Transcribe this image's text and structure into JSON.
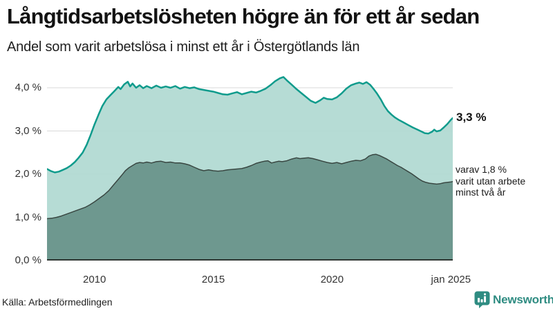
{
  "colors": {
    "background": "#ffffff",
    "gridline": "#d9d9d9",
    "baseline": "#2f3733",
    "accent_teal": "#0f9b8c",
    "dark_area": "#6f978f",
    "brand_teal": "#2f8c82",
    "text": "#121212"
  },
  "annotations": {
    "total_end_label": "3,3 %",
    "lower_end_lines": [
      "varav 1,8 %",
      "varit utan arbete",
      "minst två år"
    ]
  },
  "footer": {
    "source": "Källa: Arbetsförmedlingen",
    "brand": {
      "name": "Newsworthy",
      "icon": "bar-chart-bubble-icon",
      "color": "#2f8c82"
    }
  },
  "chart_data": {
    "type": "area",
    "title": "Långtidsarbetslösheten högre än för ett år sedan",
    "subtitle": "Andel som varit arbetslösa i minst ett år i Östergötlands län",
    "source": "Källa: Arbetsförmedlingen",
    "grid": true,
    "legend_position": "none",
    "x_axis": {
      "range": [
        2008.0,
        2025.08
      ],
      "ticks": [
        {
          "value": 2010,
          "label": "2010"
        },
        {
          "value": 2015,
          "label": "2015"
        },
        {
          "value": 2020,
          "label": "2020"
        },
        {
          "value": 2025,
          "label": "jan 2025"
        }
      ]
    },
    "y_axis": {
      "range": [
        0,
        4.384
      ],
      "unit": "%",
      "ticks": [
        {
          "value": 0,
          "label": "0,0 %"
        },
        {
          "value": 1,
          "label": "1,0 %"
        },
        {
          "value": 2,
          "label": "2,0 %"
        },
        {
          "value": 3,
          "label": "3,0 %"
        },
        {
          "value": 4,
          "label": "4,0 %"
        }
      ]
    },
    "series": [
      {
        "name": "Arbetslösa minst ett år",
        "end_value": 3.3,
        "end_label": "3,3 %",
        "line_color": "#0f9b8c",
        "line_width": 2.5,
        "fill_color": "rgba(176,217,210,0.93)",
        "points": [
          [
            2008.0,
            2.12
          ],
          [
            2008.17,
            2.07
          ],
          [
            2008.33,
            2.04
          ],
          [
            2008.5,
            2.06
          ],
          [
            2008.67,
            2.1
          ],
          [
            2008.83,
            2.14
          ],
          [
            2009.0,
            2.2
          ],
          [
            2009.17,
            2.28
          ],
          [
            2009.33,
            2.38
          ],
          [
            2009.5,
            2.5
          ],
          [
            2009.67,
            2.68
          ],
          [
            2009.83,
            2.9
          ],
          [
            2010.0,
            3.15
          ],
          [
            2010.17,
            3.38
          ],
          [
            2010.33,
            3.58
          ],
          [
            2010.5,
            3.73
          ],
          [
            2010.67,
            3.83
          ],
          [
            2010.83,
            3.92
          ],
          [
            2011.0,
            4.02
          ],
          [
            2011.1,
            3.97
          ],
          [
            2011.25,
            4.08
          ],
          [
            2011.4,
            4.14
          ],
          [
            2011.5,
            4.03
          ],
          [
            2011.6,
            4.1
          ],
          [
            2011.75,
            4.0
          ],
          [
            2011.9,
            4.06
          ],
          [
            2012.05,
            3.99
          ],
          [
            2012.2,
            4.04
          ],
          [
            2012.4,
            3.99
          ],
          [
            2012.6,
            4.05
          ],
          [
            2012.8,
            4.0
          ],
          [
            2013.0,
            4.03
          ],
          [
            2013.2,
            4.0
          ],
          [
            2013.4,
            4.04
          ],
          [
            2013.6,
            3.98
          ],
          [
            2013.8,
            4.02
          ],
          [
            2014.0,
            3.99
          ],
          [
            2014.2,
            4.01
          ],
          [
            2014.4,
            3.97
          ],
          [
            2014.6,
            3.95
          ],
          [
            2014.8,
            3.93
          ],
          [
            2015.0,
            3.91
          ],
          [
            2015.2,
            3.88
          ],
          [
            2015.4,
            3.85
          ],
          [
            2015.6,
            3.84
          ],
          [
            2015.8,
            3.87
          ],
          [
            2016.0,
            3.9
          ],
          [
            2016.2,
            3.85
          ],
          [
            2016.4,
            3.88
          ],
          [
            2016.6,
            3.91
          ],
          [
            2016.8,
            3.89
          ],
          [
            2017.0,
            3.93
          ],
          [
            2017.2,
            3.98
          ],
          [
            2017.4,
            4.06
          ],
          [
            2017.6,
            4.15
          ],
          [
            2017.8,
            4.22
          ],
          [
            2017.95,
            4.25
          ],
          [
            2018.1,
            4.17
          ],
          [
            2018.3,
            4.07
          ],
          [
            2018.5,
            3.97
          ],
          [
            2018.7,
            3.88
          ],
          [
            2018.9,
            3.79
          ],
          [
            2019.1,
            3.7
          ],
          [
            2019.3,
            3.65
          ],
          [
            2019.5,
            3.71
          ],
          [
            2019.65,
            3.77
          ],
          [
            2019.8,
            3.74
          ],
          [
            2020.0,
            3.73
          ],
          [
            2020.2,
            3.78
          ],
          [
            2020.4,
            3.87
          ],
          [
            2020.6,
            3.98
          ],
          [
            2020.8,
            4.06
          ],
          [
            2021.0,
            4.1
          ],
          [
            2021.15,
            4.12
          ],
          [
            2021.3,
            4.09
          ],
          [
            2021.45,
            4.13
          ],
          [
            2021.6,
            4.07
          ],
          [
            2021.75,
            3.97
          ],
          [
            2021.9,
            3.86
          ],
          [
            2022.05,
            3.73
          ],
          [
            2022.2,
            3.58
          ],
          [
            2022.35,
            3.46
          ],
          [
            2022.5,
            3.38
          ],
          [
            2022.65,
            3.31
          ],
          [
            2022.8,
            3.26
          ],
          [
            2023.0,
            3.2
          ],
          [
            2023.2,
            3.14
          ],
          [
            2023.4,
            3.08
          ],
          [
            2023.6,
            3.03
          ],
          [
            2023.75,
            2.99
          ],
          [
            2023.9,
            2.95
          ],
          [
            2024.05,
            2.94
          ],
          [
            2024.2,
            2.98
          ],
          [
            2024.3,
            3.03
          ],
          [
            2024.4,
            2.99
          ],
          [
            2024.55,
            3.01
          ],
          [
            2024.7,
            3.08
          ],
          [
            2024.85,
            3.16
          ],
          [
            2025.0,
            3.26
          ],
          [
            2025.08,
            3.3
          ]
        ]
      },
      {
        "name": "Arbetslösa minst två år",
        "end_value": 1.8,
        "end_label": "varav 1,8 % varit utan arbete minst två år",
        "line_color": "#394742",
        "line_width": 1.5,
        "fill_color": "rgba(104,146,138,0.93)",
        "points": [
          [
            2008.0,
            0.97
          ],
          [
            2008.2,
            0.98
          ],
          [
            2008.4,
            1.0
          ],
          [
            2008.6,
            1.03
          ],
          [
            2008.8,
            1.07
          ],
          [
            2009.0,
            1.11
          ],
          [
            2009.2,
            1.15
          ],
          [
            2009.4,
            1.19
          ],
          [
            2009.6,
            1.23
          ],
          [
            2009.8,
            1.29
          ],
          [
            2010.0,
            1.36
          ],
          [
            2010.2,
            1.44
          ],
          [
            2010.4,
            1.52
          ],
          [
            2010.6,
            1.62
          ],
          [
            2010.8,
            1.75
          ],
          [
            2011.0,
            1.88
          ],
          [
            2011.15,
            1.98
          ],
          [
            2011.3,
            2.08
          ],
          [
            2011.45,
            2.15
          ],
          [
            2011.6,
            2.2
          ],
          [
            2011.75,
            2.25
          ],
          [
            2011.9,
            2.27
          ],
          [
            2012.05,
            2.26
          ],
          [
            2012.2,
            2.28
          ],
          [
            2012.4,
            2.26
          ],
          [
            2012.6,
            2.29
          ],
          [
            2012.8,
            2.3
          ],
          [
            2013.0,
            2.27
          ],
          [
            2013.2,
            2.28
          ],
          [
            2013.4,
            2.26
          ],
          [
            2013.6,
            2.26
          ],
          [
            2013.8,
            2.24
          ],
          [
            2014.0,
            2.21
          ],
          [
            2014.2,
            2.16
          ],
          [
            2014.4,
            2.11
          ],
          [
            2014.6,
            2.08
          ],
          [
            2014.8,
            2.1
          ],
          [
            2015.0,
            2.08
          ],
          [
            2015.2,
            2.07
          ],
          [
            2015.4,
            2.08
          ],
          [
            2015.6,
            2.1
          ],
          [
            2015.8,
            2.11
          ],
          [
            2016.0,
            2.12
          ],
          [
            2016.2,
            2.13
          ],
          [
            2016.4,
            2.16
          ],
          [
            2016.6,
            2.2
          ],
          [
            2016.8,
            2.25
          ],
          [
            2017.0,
            2.28
          ],
          [
            2017.15,
            2.3
          ],
          [
            2017.3,
            2.31
          ],
          [
            2017.45,
            2.26
          ],
          [
            2017.6,
            2.28
          ],
          [
            2017.75,
            2.3
          ],
          [
            2017.9,
            2.29
          ],
          [
            2018.1,
            2.31
          ],
          [
            2018.3,
            2.35
          ],
          [
            2018.5,
            2.38
          ],
          [
            2018.65,
            2.36
          ],
          [
            2018.8,
            2.37
          ],
          [
            2019.0,
            2.38
          ],
          [
            2019.2,
            2.36
          ],
          [
            2019.4,
            2.33
          ],
          [
            2019.6,
            2.3
          ],
          [
            2019.8,
            2.27
          ],
          [
            2020.0,
            2.25
          ],
          [
            2020.2,
            2.27
          ],
          [
            2020.4,
            2.24
          ],
          [
            2020.6,
            2.27
          ],
          [
            2020.8,
            2.3
          ],
          [
            2021.0,
            2.32
          ],
          [
            2021.2,
            2.31
          ],
          [
            2021.4,
            2.35
          ],
          [
            2021.55,
            2.42
          ],
          [
            2021.7,
            2.45
          ],
          [
            2021.85,
            2.46
          ],
          [
            2022.0,
            2.43
          ],
          [
            2022.15,
            2.39
          ],
          [
            2022.3,
            2.35
          ],
          [
            2022.45,
            2.3
          ],
          [
            2022.6,
            2.25
          ],
          [
            2022.75,
            2.2
          ],
          [
            2022.9,
            2.16
          ],
          [
            2023.05,
            2.11
          ],
          [
            2023.2,
            2.06
          ],
          [
            2023.35,
            2.01
          ],
          [
            2023.5,
            1.95
          ],
          [
            2023.65,
            1.89
          ],
          [
            2023.8,
            1.84
          ],
          [
            2023.95,
            1.81
          ],
          [
            2024.1,
            1.79
          ],
          [
            2024.25,
            1.78
          ],
          [
            2024.4,
            1.77
          ],
          [
            2024.55,
            1.78
          ],
          [
            2024.7,
            1.8
          ],
          [
            2024.85,
            1.81
          ],
          [
            2025.0,
            1.82
          ],
          [
            2025.08,
            1.83
          ]
        ]
      }
    ]
  }
}
